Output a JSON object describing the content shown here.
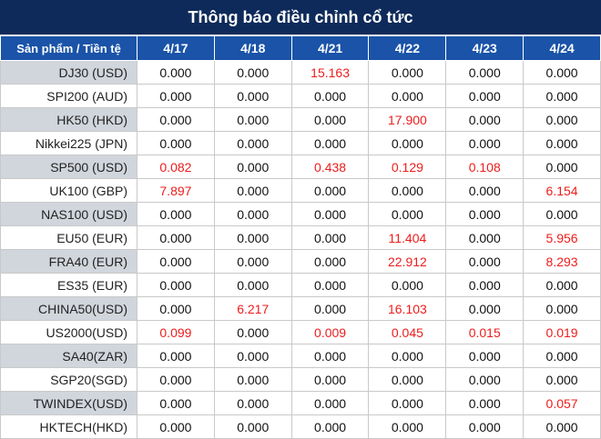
{
  "title": "Thông báo điều chỉnh cổ tức",
  "header": {
    "product_col": "Sản phẩm / Tiền tệ",
    "dates": [
      "4/17",
      "4/18",
      "4/21",
      "4/22",
      "4/23",
      "4/24"
    ]
  },
  "colors": {
    "title_bg": "#0d2a5a",
    "header_bg": "#1a53a8",
    "highlight": "#ee1c1c",
    "stripe": "#d1d5dc"
  },
  "rows": [
    {
      "product": "DJ30 (USD)",
      "values": [
        "0.000",
        "0.000",
        "15.163",
        "0.000",
        "0.000",
        "0.000"
      ]
    },
    {
      "product": "SPI200 (AUD)",
      "values": [
        "0.000",
        "0.000",
        "0.000",
        "0.000",
        "0.000",
        "0.000"
      ]
    },
    {
      "product": "HK50 (HKD)",
      "values": [
        "0.000",
        "0.000",
        "0.000",
        "17.900",
        "0.000",
        "0.000"
      ]
    },
    {
      "product": "Nikkei225 (JPN)",
      "values": [
        "0.000",
        "0.000",
        "0.000",
        "0.000",
        "0.000",
        "0.000"
      ]
    },
    {
      "product": "SP500 (USD)",
      "values": [
        "0.082",
        "0.000",
        "0.438",
        "0.129",
        "0.108",
        "0.000"
      ]
    },
    {
      "product": "UK100 (GBP)",
      "values": [
        "7.897",
        "0.000",
        "0.000",
        "0.000",
        "0.000",
        "6.154"
      ]
    },
    {
      "product": "NAS100 (USD)",
      "values": [
        "0.000",
        "0.000",
        "0.000",
        "0.000",
        "0.000",
        "0.000"
      ]
    },
    {
      "product": "EU50 (EUR)",
      "values": [
        "0.000",
        "0.000",
        "0.000",
        "11.404",
        "0.000",
        "5.956"
      ]
    },
    {
      "product": "FRA40 (EUR)",
      "values": [
        "0.000",
        "0.000",
        "0.000",
        "22.912",
        "0.000",
        "8.293"
      ]
    },
    {
      "product": "ES35 (EUR)",
      "values": [
        "0.000",
        "0.000",
        "0.000",
        "0.000",
        "0.000",
        "0.000"
      ]
    },
    {
      "product": "CHINA50(USD)",
      "values": [
        "0.000",
        "6.217",
        "0.000",
        "16.103",
        "0.000",
        "0.000"
      ]
    },
    {
      "product": "US2000(USD)",
      "values": [
        "0.099",
        "0.000",
        "0.009",
        "0.045",
        "0.015",
        "0.019"
      ]
    },
    {
      "product": "SA40(ZAR)",
      "values": [
        "0.000",
        "0.000",
        "0.000",
        "0.000",
        "0.000",
        "0.000"
      ]
    },
    {
      "product": "SGP20(SGD)",
      "values": [
        "0.000",
        "0.000",
        "0.000",
        "0.000",
        "0.000",
        "0.000"
      ]
    },
    {
      "product": "TWINDEX(USD)",
      "values": [
        "0.000",
        "0.000",
        "0.000",
        "0.000",
        "0.000",
        "0.057"
      ]
    },
    {
      "product": "HKTECH(HKD)",
      "values": [
        "0.000",
        "0.000",
        "0.000",
        "0.000",
        "0.000",
        "0.000"
      ]
    }
  ]
}
